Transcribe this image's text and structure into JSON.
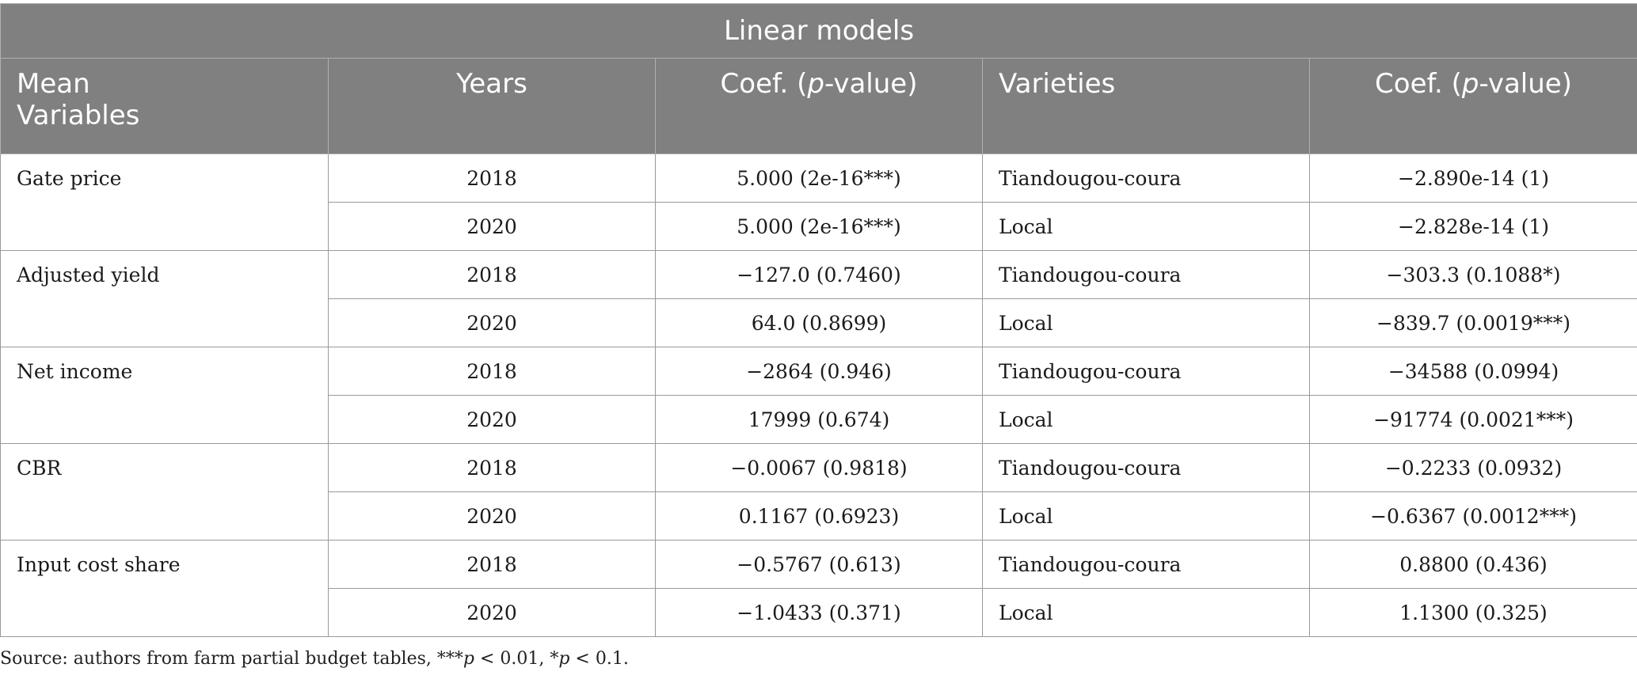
{
  "table": {
    "title": "Linear models",
    "headers": {
      "mean_variables": "Mean Variables",
      "mean_variables_line1": "Mean",
      "mean_variables_line2": "Variables",
      "years": "Years",
      "coef1_prefix": "Coef. (",
      "coef1_p": "p",
      "coef1_suffix": "-value)",
      "varieties": "Varieties",
      "coef2_prefix": "Coef. (",
      "coef2_p": "p",
      "coef2_suffix": "-value)"
    },
    "groups": [
      {
        "variable": "Gate price",
        "rows": [
          {
            "year": "2018",
            "coef": "5.000 (2e-16***)",
            "variety": "Tiandougou-coura",
            "coef_variety": "−2.890e-14 (1)"
          },
          {
            "year": "2020",
            "coef": "5.000 (2e-16***)",
            "variety": "Local",
            "coef_variety": "−2.828e-14 (1)"
          }
        ]
      },
      {
        "variable": "Adjusted yield",
        "rows": [
          {
            "year": "2018",
            "coef": "−127.0 (0.7460)",
            "variety": "Tiandougou-coura",
            "coef_variety": "−303.3 (0.1088*)"
          },
          {
            "year": "2020",
            "coef": "64.0 (0.8699)",
            "variety": "Local",
            "coef_variety": "−839.7 (0.0019***)"
          }
        ]
      },
      {
        "variable": "Net income",
        "rows": [
          {
            "year": "2018",
            "coef": "−2864 (0.946)",
            "variety": "Tiandougou-coura",
            "coef_variety": "−34588 (0.0994)"
          },
          {
            "year": "2020",
            "coef": "17999 (0.674)",
            "variety": "Local",
            "coef_variety": "−91774 (0.0021***)"
          }
        ]
      },
      {
        "variable": "CBR",
        "rows": [
          {
            "year": "2018",
            "coef": "−0.0067 (0.9818)",
            "variety": "Tiandougou-coura",
            "coef_variety": "−0.2233 (0.0932)"
          },
          {
            "year": "2020",
            "coef": "0.1167 (0.6923)",
            "variety": "Local",
            "coef_variety": "−0.6367 (0.0012***)"
          }
        ]
      },
      {
        "variable": "Input cost share",
        "rows": [
          {
            "year": "2018",
            "coef": "−0.5767 (0.613)",
            "variety": "Tiandougou-coura",
            "coef_variety": "0.8800 (0.436)"
          },
          {
            "year": "2020",
            "coef": "−1.0433 (0.371)",
            "variety": "Local",
            "coef_variety": "1.1300 (0.325)"
          }
        ]
      }
    ]
  },
  "source_note": {
    "prefix": "Source: authors from farm partial budget tables, ***",
    "p1": "p",
    "mid": " < 0.01, *",
    "p2": "p",
    "suffix": " < 0.1."
  },
  "colors": {
    "header_bg": "#808080",
    "header_text": "#ffffff",
    "border": "#9a9a9a"
  }
}
